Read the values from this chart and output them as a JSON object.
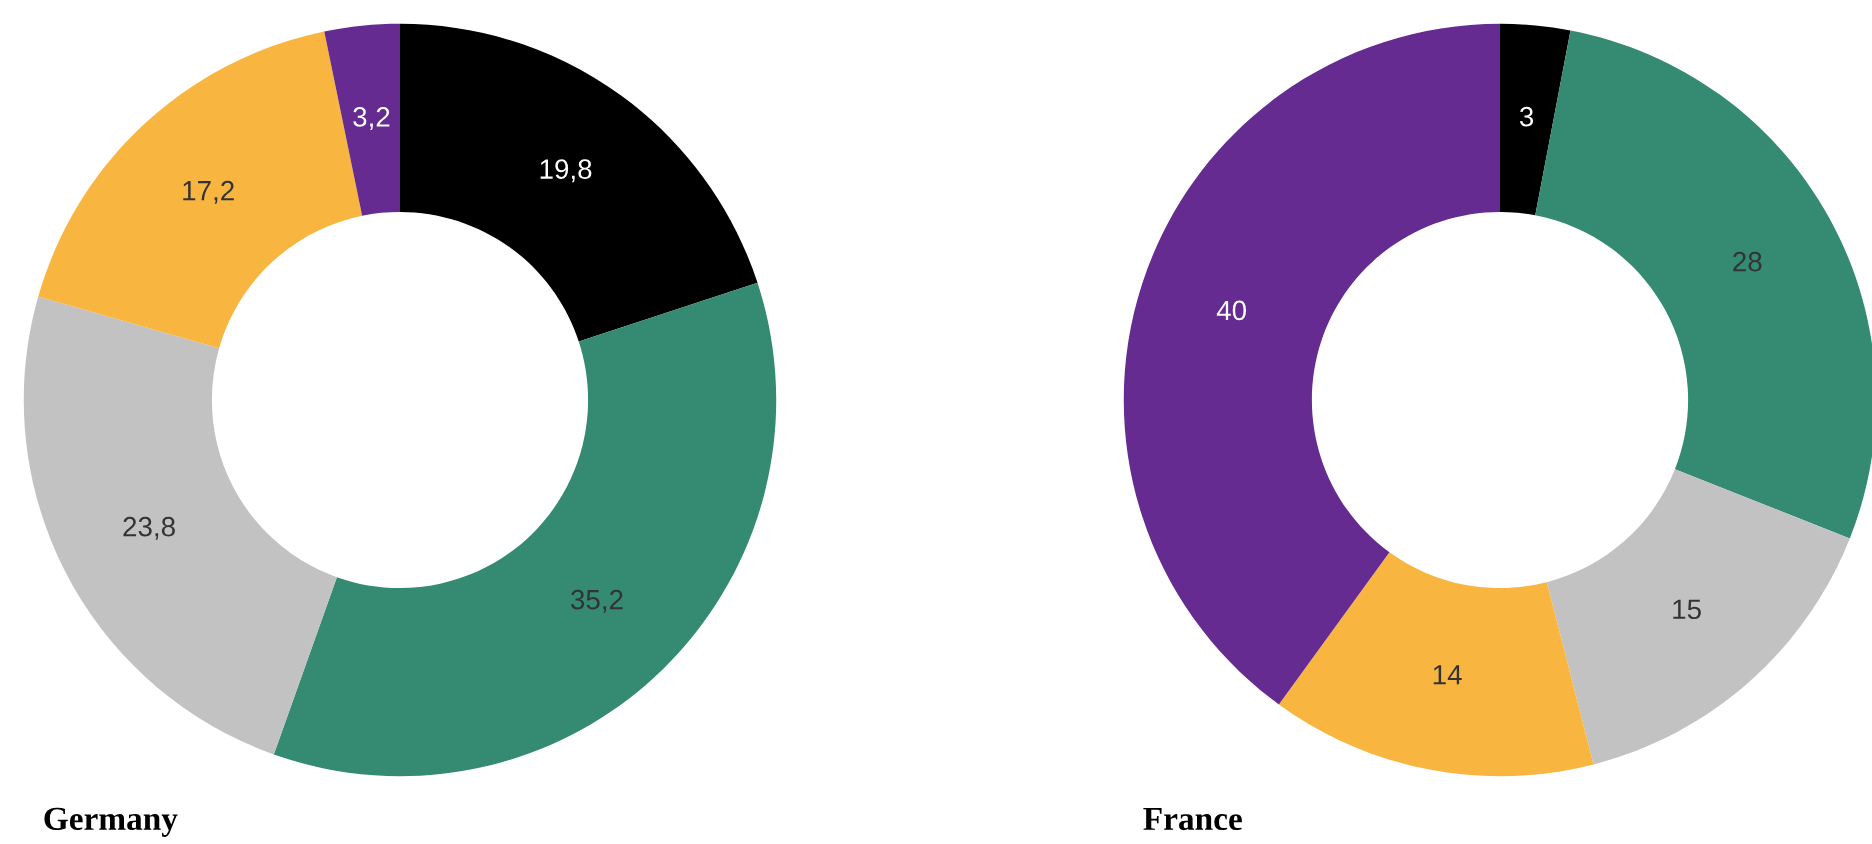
{
  "chart_data": [
    {
      "type": "donut",
      "title": "Germany",
      "categories": [
        null,
        null,
        null,
        null,
        null
      ],
      "values": [
        19.8,
        35.2,
        23.8,
        17.2,
        3.2
      ],
      "value_labels": [
        "19,8",
        "35,2",
        "23,8",
        "17,2",
        "3,2"
      ],
      "colors": [
        "#000000",
        "#358a72",
        "#c2c2c2",
        "#f8b540",
        "#652b90"
      ]
    },
    {
      "type": "donut",
      "title": "France",
      "categories": [
        null,
        null,
        null,
        null,
        null
      ],
      "values": [
        3,
        28,
        15,
        14,
        40
      ],
      "value_labels": [
        "3",
        "28",
        "15",
        "14",
        "40"
      ],
      "colors": [
        "#000000",
        "#358a72",
        "#c2c2c2",
        "#f8b540",
        "#652b90"
      ]
    }
  ]
}
